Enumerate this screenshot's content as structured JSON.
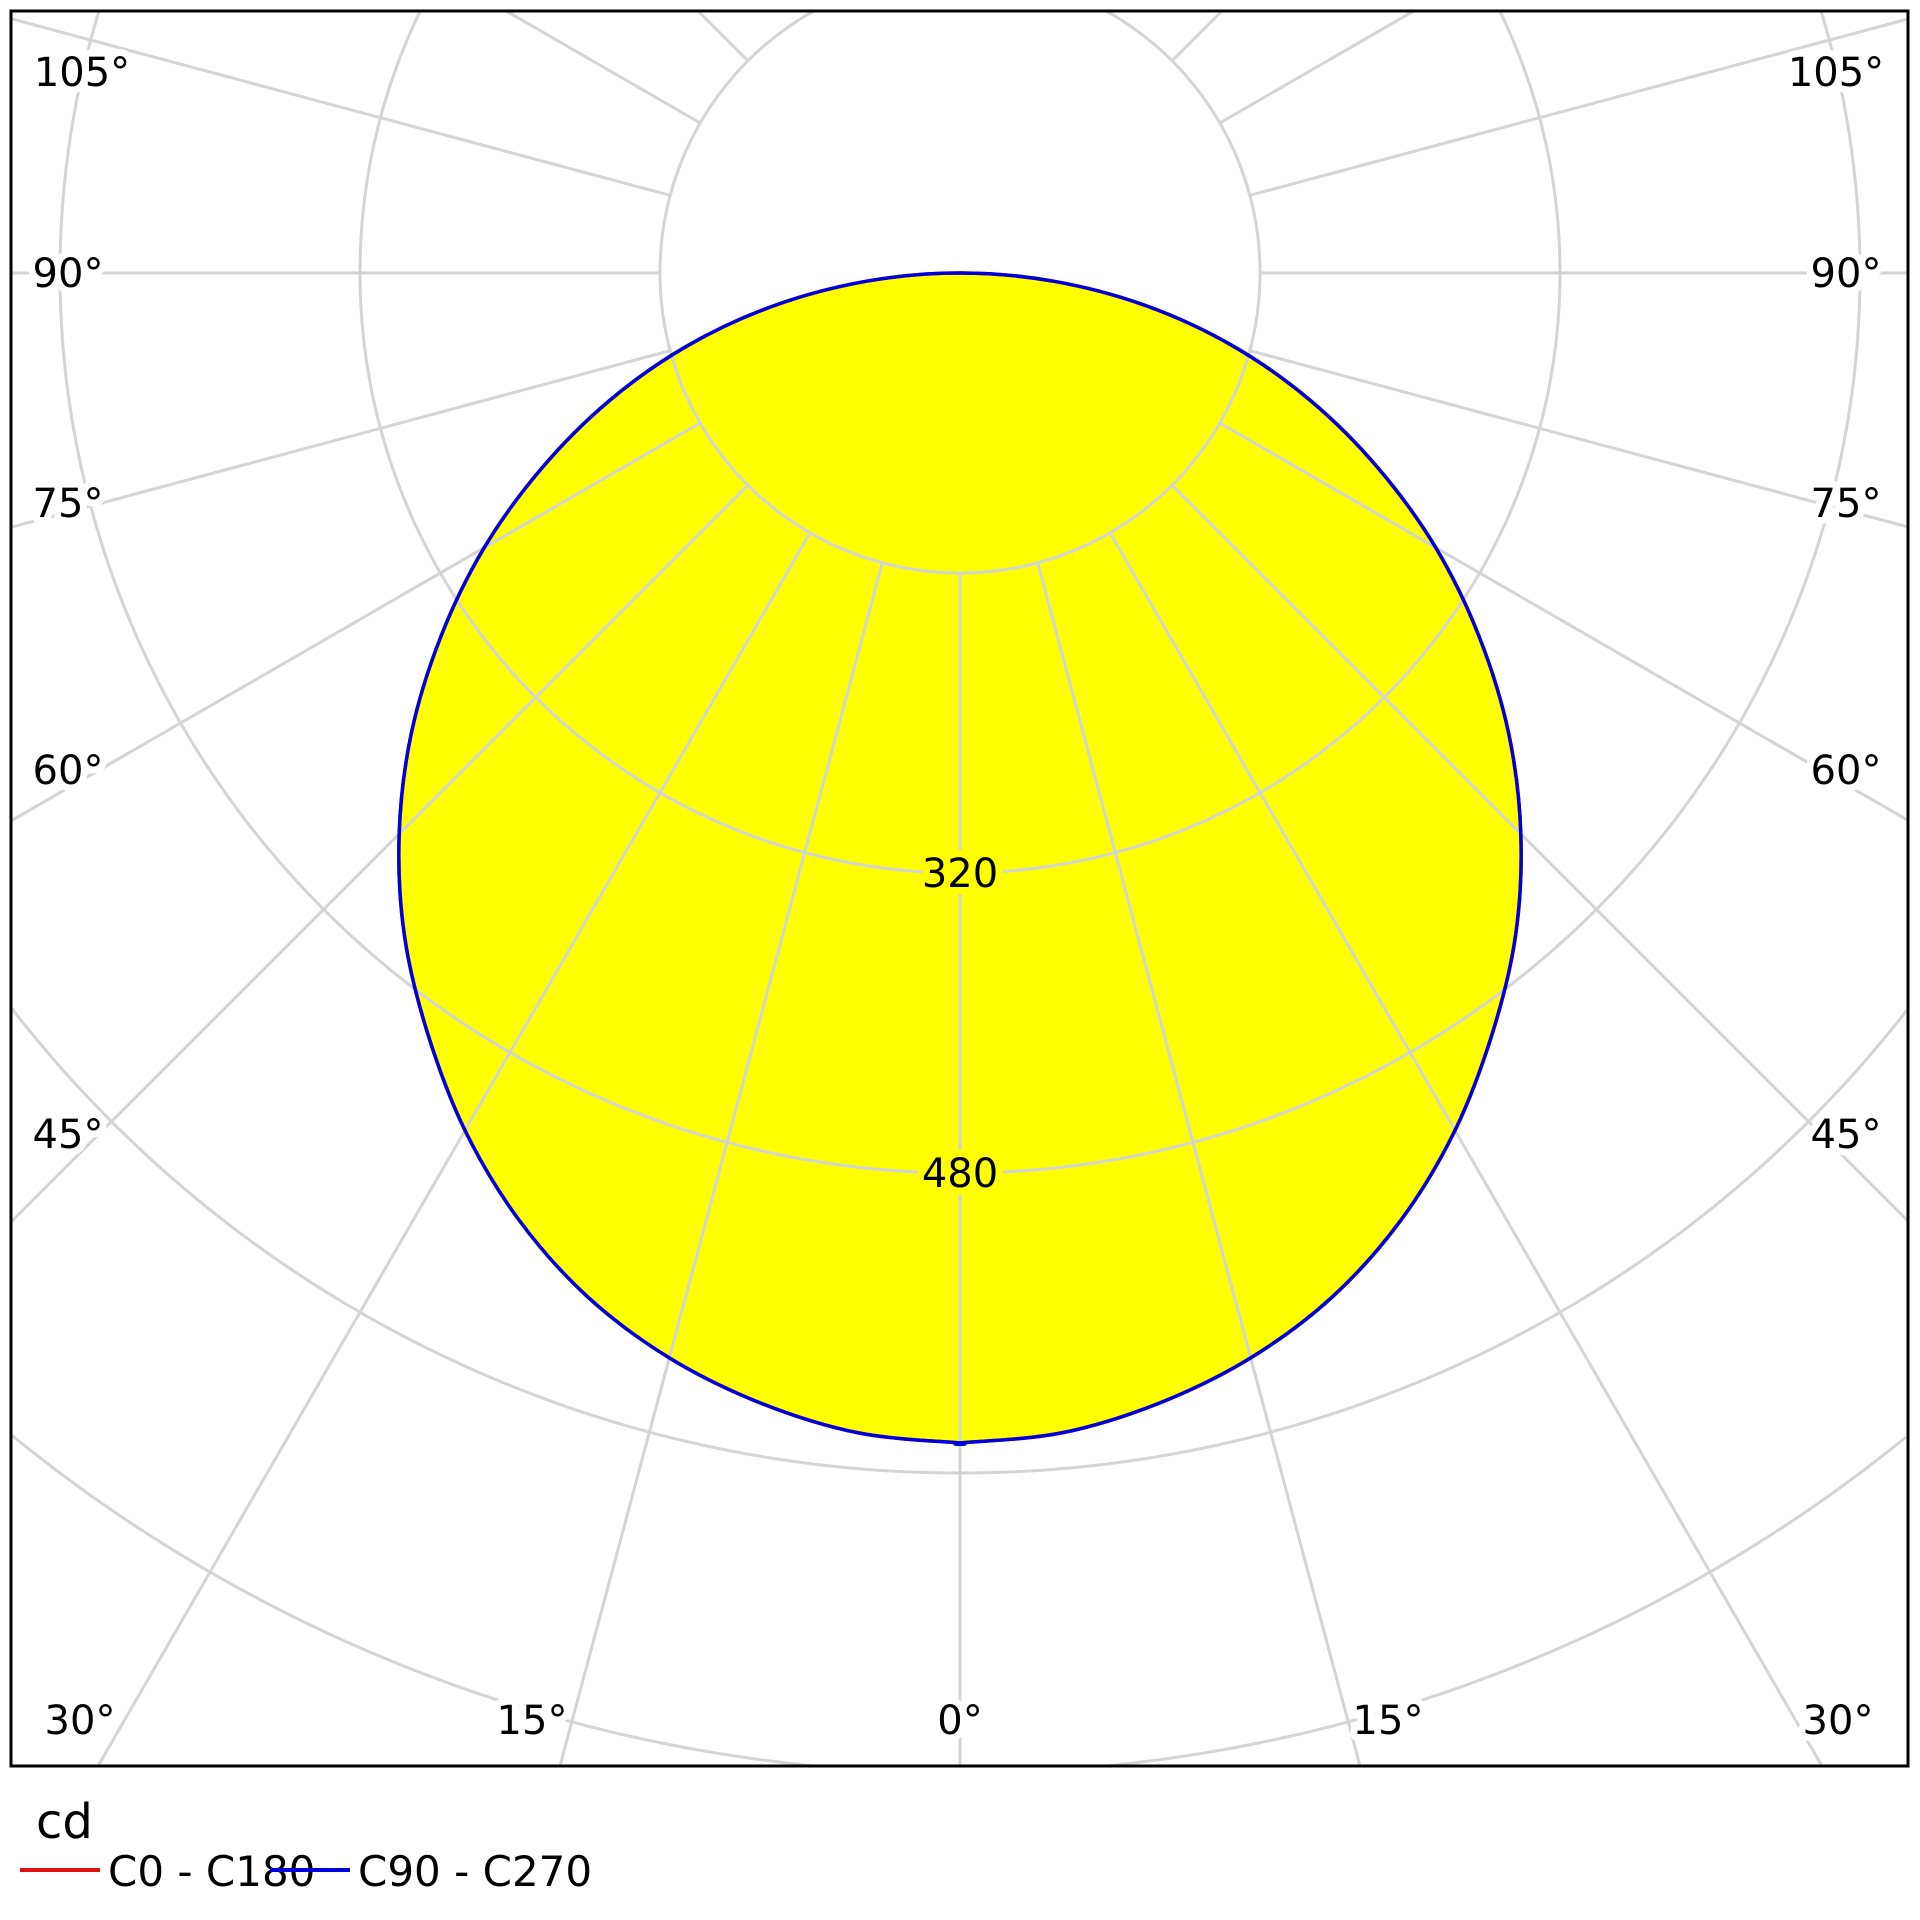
{
  "chart_data": {
    "type": "polar",
    "unit_label": "cd",
    "angle_unit": "degrees",
    "radial_range": [
      0,
      1120
    ],
    "radial_ticks": [
      160,
      320,
      480,
      640,
      800,
      960,
      1120
    ],
    "radial_tick_labels": [
      "320",
      "480"
    ],
    "angle_ticks": [
      0,
      15,
      30,
      45,
      60,
      75,
      90,
      105,
      120,
      135,
      150,
      165,
      180
    ],
    "angle_tick_labels": {
      "bottom": [
        "30°",
        "15°",
        "0°",
        "15°",
        "30°"
      ],
      "left": [
        "105°",
        "90°",
        "75°",
        "60°",
        "45°"
      ],
      "right": [
        "105°",
        "90°",
        "75°",
        "60°",
        "45°"
      ]
    },
    "grid": true,
    "legend_position": "bottom-left",
    "fill_color": "#ffff00",
    "gamma": [
      0,
      5,
      10,
      15,
      20,
      25,
      30,
      35,
      40,
      45,
      50,
      55,
      60,
      65,
      70,
      75,
      80,
      85,
      90
    ],
    "series": [
      {
        "name": "C0 - C180",
        "color": "#dd1111",
        "values": [
          624,
          621,
          612,
          599,
          581,
          557,
          528,
          495,
          461,
          423,
          382,
          338,
          293,
          246,
          199,
          151,
          101,
          50,
          0
        ]
      },
      {
        "name": "C90 - C270",
        "color": "#0000dd",
        "values": [
          624,
          621,
          612,
          599,
          581,
          557,
          528,
          495,
          461,
          423,
          382,
          338,
          293,
          246,
          199,
          151,
          101,
          50,
          0
        ]
      }
    ]
  }
}
